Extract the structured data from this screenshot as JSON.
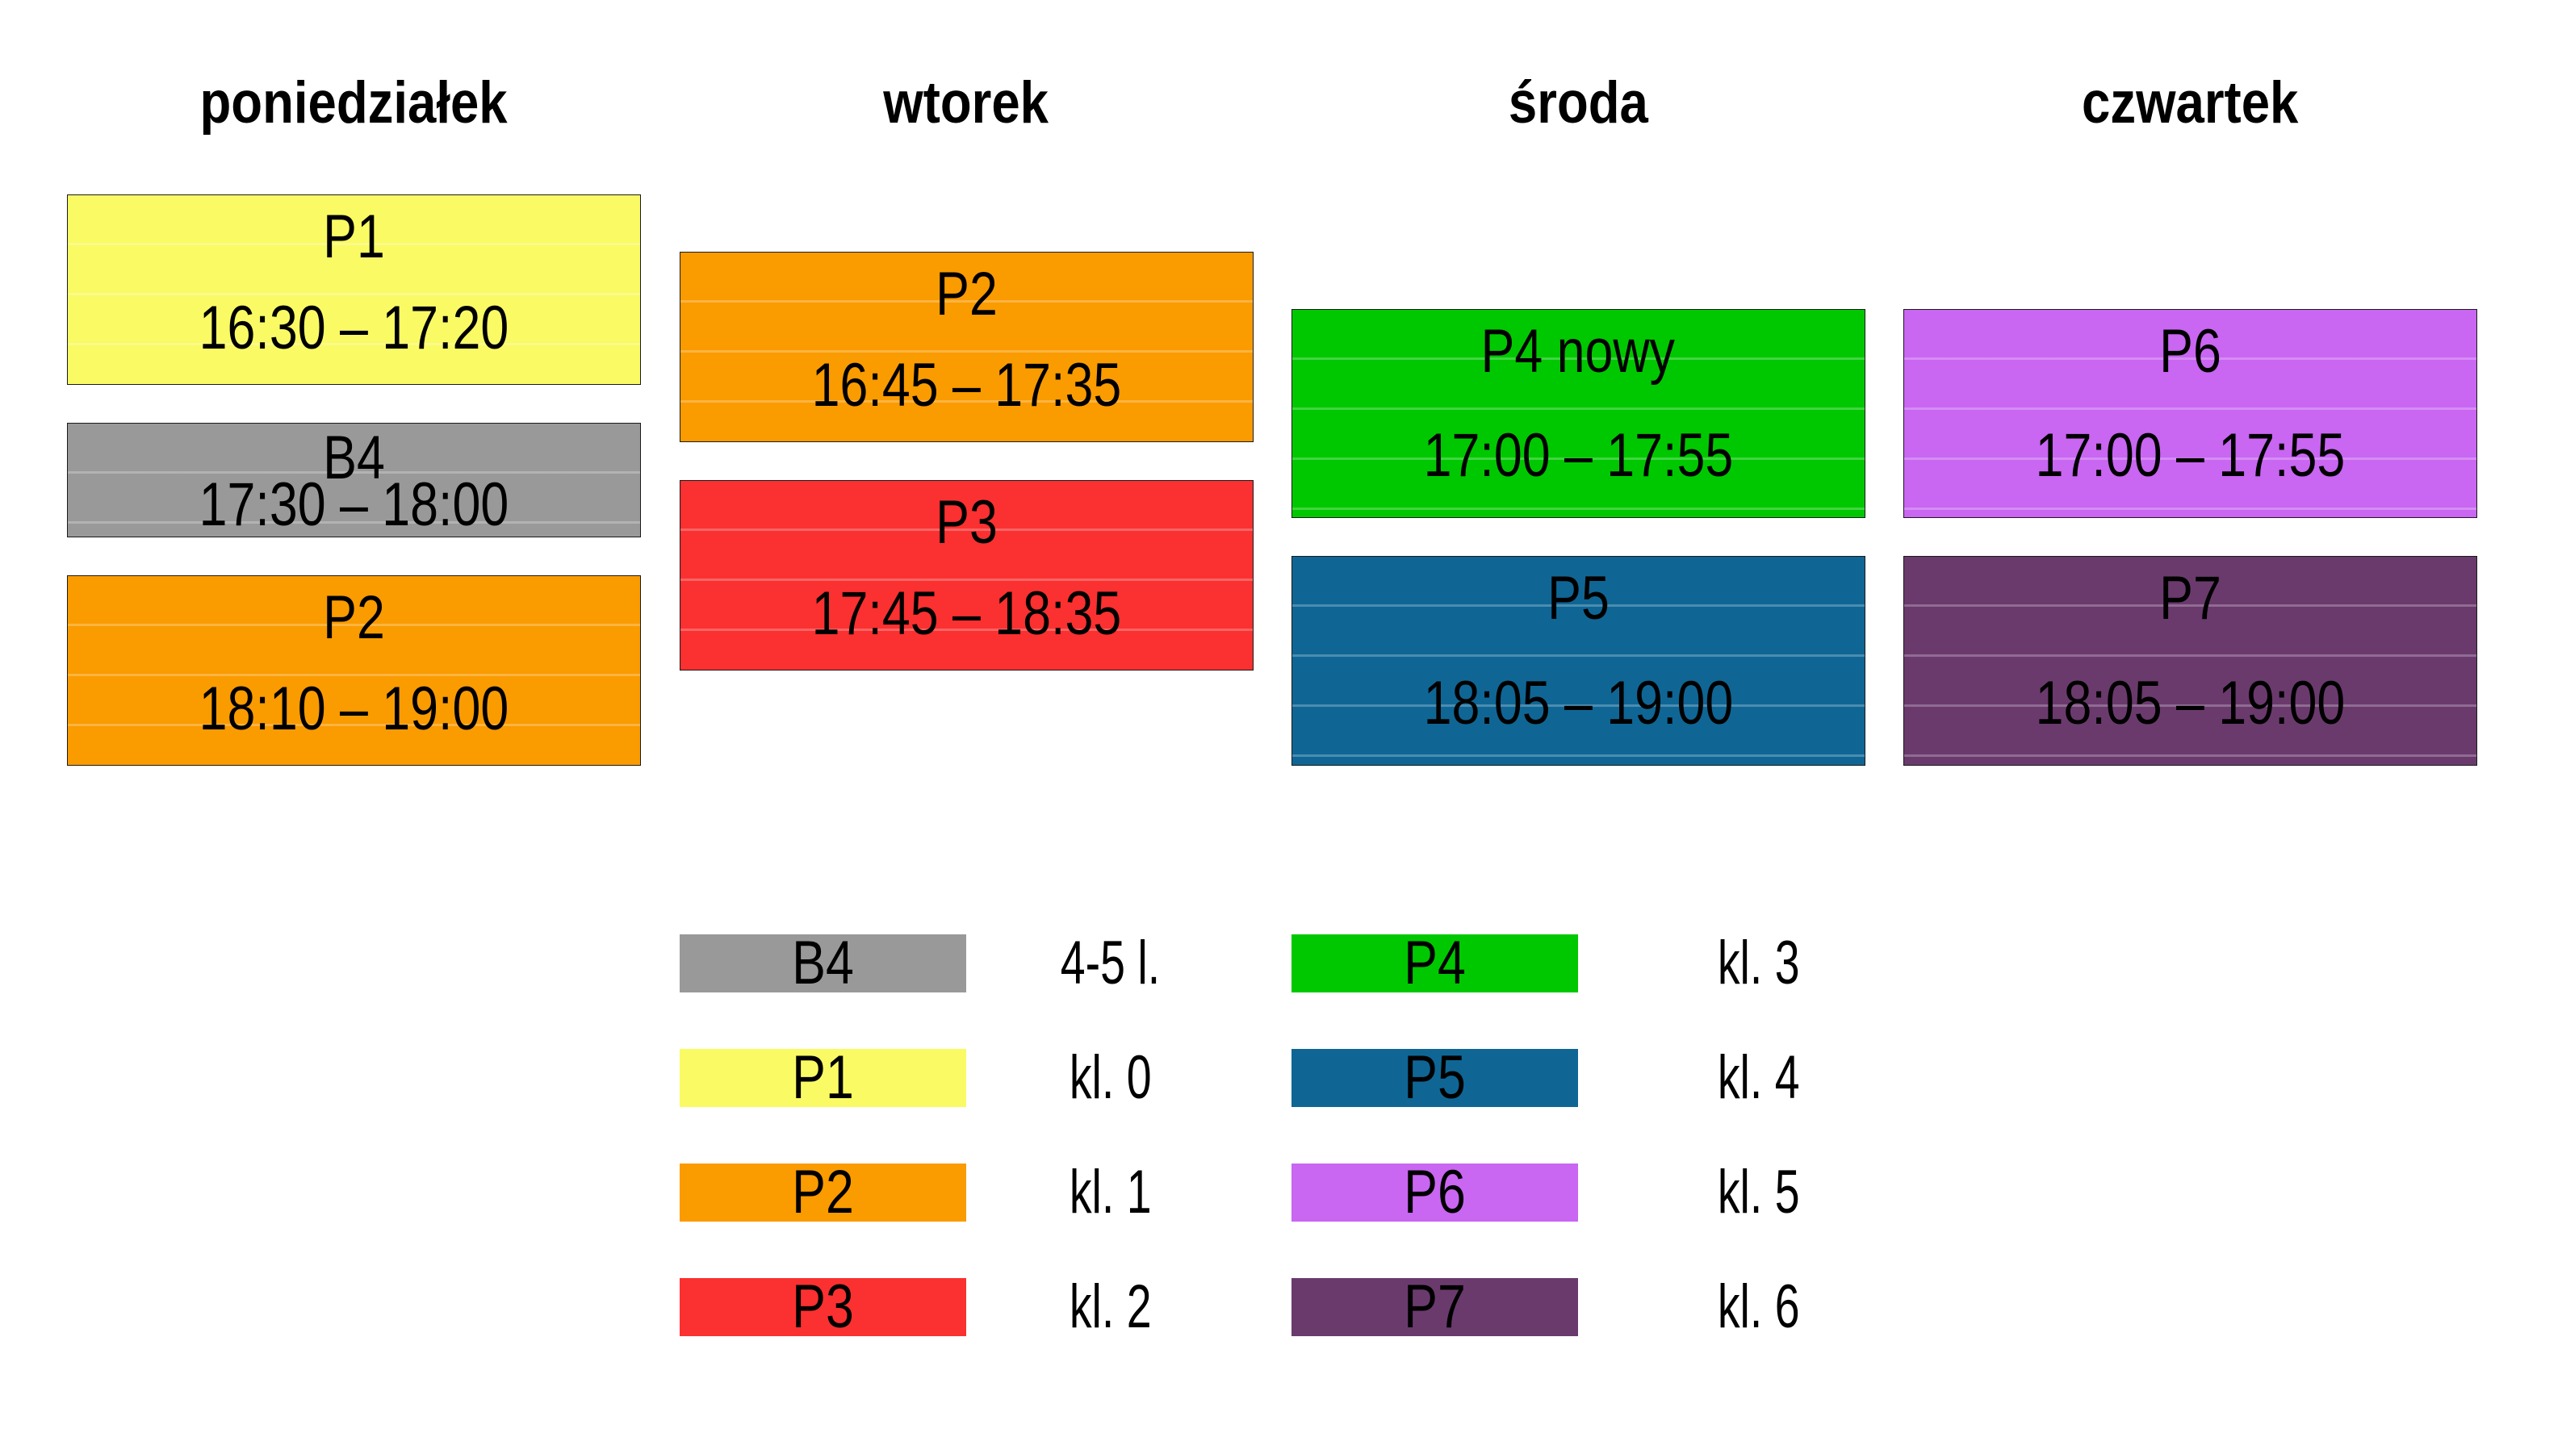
{
  "page": {
    "background": "#ffffff",
    "text_color": "#000000",
    "block_border_color": "#1a1a1a"
  },
  "colors": {
    "B4": "#999999",
    "P1": "#fafa64",
    "P2": "#fa9b00",
    "P3": "#fb3030",
    "P4": "#00c800",
    "P5": "#0f6695",
    "P6": "#c966f2",
    "P7": "#6a3a6d"
  },
  "columns": [
    {
      "day": "poniedziałek",
      "events": [
        {
          "code": "P1",
          "time": "16:30 – 17:20",
          "color_key": "P1"
        },
        {
          "code": "B4",
          "time": "17:30 – 18:00",
          "color_key": "B4"
        },
        {
          "code": "P2",
          "time": "18:10 – 19:00",
          "color_key": "P2"
        }
      ]
    },
    {
      "day": "wtorek",
      "events": [
        {
          "code": "P2",
          "time": "16:45 – 17:35",
          "color_key": "P2"
        },
        {
          "code": "P3",
          "time": "17:45 – 18:35",
          "color_key": "P3"
        }
      ]
    },
    {
      "day": "środa",
      "events": [
        {
          "code": "P4 nowy",
          "time": "17:00 – 17:55",
          "color_key": "P4"
        },
        {
          "code": "P5",
          "time": "18:05 – 19:00",
          "color_key": "P5"
        }
      ]
    },
    {
      "day": "czwartek",
      "events": [
        {
          "code": "P6",
          "time": "17:00 – 17:55",
          "color_key": "P6"
        },
        {
          "code": "P7",
          "time": "18:05 – 19:00",
          "color_key": "P7"
        }
      ]
    }
  ],
  "legend": {
    "columns": [
      [
        {
          "code": "B4",
          "label": "4-5 l.",
          "color_key": "B4"
        },
        {
          "code": "P1",
          "label": "kl. 0",
          "color_key": "P1"
        },
        {
          "code": "P2",
          "label": "kl. 1",
          "color_key": "P2"
        },
        {
          "code": "P3",
          "label": "kl. 2",
          "color_key": "P3"
        }
      ],
      [
        {
          "code": "P4",
          "label": "kl. 3",
          "color_key": "P4"
        },
        {
          "code": "P5",
          "label": "kl. 4",
          "color_key": "P5"
        },
        {
          "code": "P6",
          "label": "kl. 5",
          "color_key": "P6"
        },
        {
          "code": "P7",
          "label": "kl. 6",
          "color_key": "P7"
        }
      ]
    ]
  }
}
